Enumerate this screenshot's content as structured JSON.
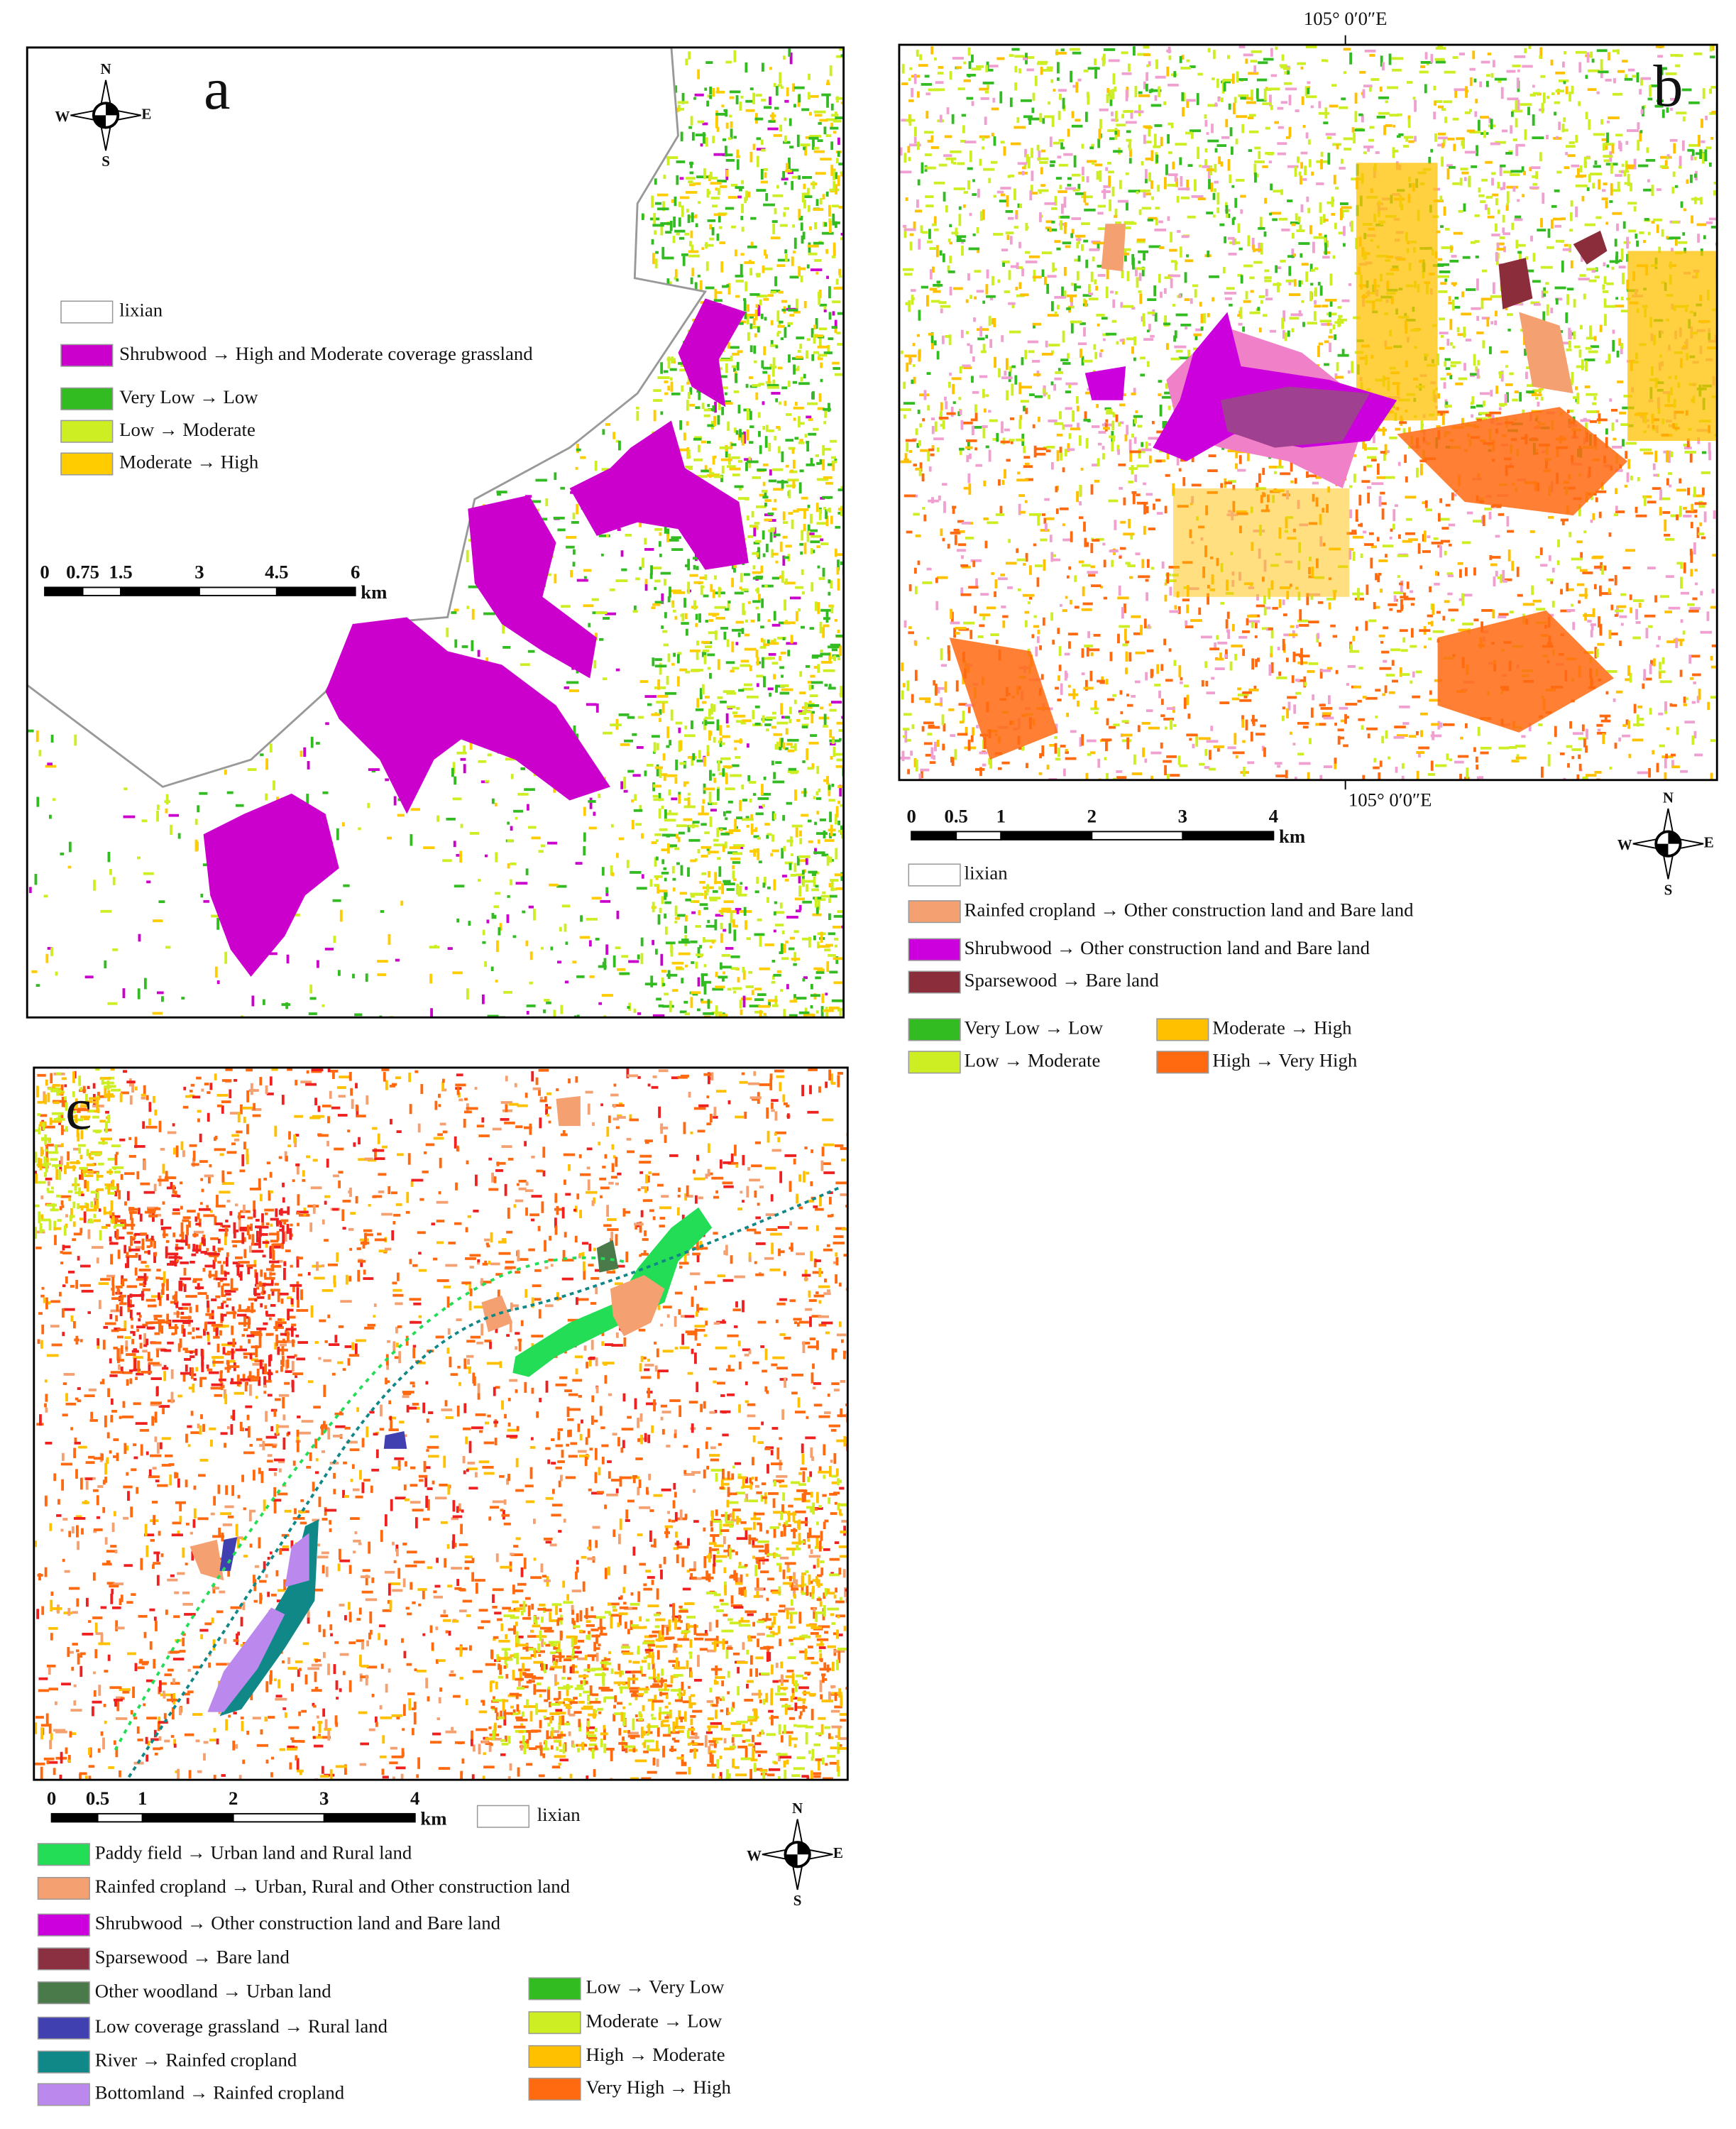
{
  "panels": [
    {
      "label": "a",
      "compass": {
        "n": "N",
        "e": "E",
        "s": "S",
        "w": "W"
      },
      "scale_bar": {
        "ticks": [
          "0",
          "0.75",
          "1.5",
          "3",
          "4.5",
          "6"
        ],
        "unit": "km"
      },
      "legend": [
        {
          "label": "lixian",
          "color": "#ffffff"
        },
        {
          "label": "Shrubwood → High and Moderate coverage grassland",
          "color": "#cc00cc"
        },
        {
          "label": "Very Low → Low",
          "color": "#33bb22"
        },
        {
          "label": "Low → Moderate",
          "color": "#ccee22"
        },
        {
          "label": "Moderate → High",
          "color": "#ffcc00"
        }
      ]
    },
    {
      "label": "b",
      "coordinate_top": "105° 0′0″E",
      "coordinate_bottom": "105° 0′0″E",
      "compass": {
        "n": "N",
        "e": "E",
        "s": "S",
        "w": "W"
      },
      "scale_bar": {
        "ticks": [
          "0",
          "0.5",
          "1",
          "2",
          "3",
          "4"
        ],
        "unit": "km"
      },
      "legend": [
        {
          "label": "lixian",
          "color": "#ffffff"
        },
        {
          "label": "Rainfed cropland → Other construction land and Bare land",
          "color": "#f4a070"
        },
        {
          "label": "Shrubwood → Other construction land and Bare land",
          "color": "#cc00dd"
        },
        {
          "label": "Sparsewood → Bare land",
          "color": "#8b2d3a"
        },
        {
          "label": "Very Low → Low",
          "color": "#33bb22"
        },
        {
          "label": "Moderate → High",
          "color": "#ffc000"
        },
        {
          "label": "Low → Moderate",
          "color": "#ccee22"
        },
        {
          "label": "High → Very High",
          "color": "#ff6a10"
        }
      ]
    },
    {
      "label": "c",
      "compass": {
        "n": "N",
        "e": "E",
        "s": "S",
        "w": "W"
      },
      "scale_bar": {
        "ticks": [
          "0",
          "0.5",
          "1",
          "2",
          "3",
          "4"
        ],
        "unit": "km"
      },
      "legend": [
        {
          "label": "lixian",
          "color": "#ffffff"
        },
        {
          "label": "Paddy field → Urban land and Rural land",
          "color": "#22dd55"
        },
        {
          "label": "Rainfed cropland → Urban, Rural and Other construction land",
          "color": "#f4a070"
        },
        {
          "label": "Shrubwood → Other construction land and Bare land",
          "color": "#cc00dd"
        },
        {
          "label": "Sparsewood → Bare land",
          "color": "#8b3040"
        },
        {
          "label": "Other woodland → Urban land",
          "color": "#4a7a4a"
        },
        {
          "label": "Low coverage grassland → Rural land",
          "color": "#4040b0"
        },
        {
          "label": "River → Rainfed cropland",
          "color": "#108888"
        },
        {
          "label": "Bottomland → Rainfed cropland",
          "color": "#bb88ee"
        },
        {
          "label": "Low → Very Low",
          "color": "#33bb22"
        },
        {
          "label": "Moderate → Low",
          "color": "#ccee22"
        },
        {
          "label": "High → Moderate",
          "color": "#ffc000"
        },
        {
          "label": "Very High → High",
          "color": "#ff6a10"
        }
      ]
    }
  ]
}
